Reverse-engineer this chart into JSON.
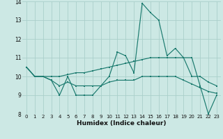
{
  "xlabel": "Humidex (Indice chaleur)",
  "xlim": [
    -0.5,
    23.5
  ],
  "ylim": [
    8,
    14
  ],
  "yticks": [
    8,
    9,
    10,
    11,
    12,
    13,
    14
  ],
  "xticks": [
    0,
    1,
    2,
    3,
    4,
    5,
    6,
    7,
    8,
    9,
    10,
    11,
    12,
    13,
    14,
    15,
    16,
    17,
    18,
    19,
    20,
    21,
    22,
    23
  ],
  "bg_color": "#cce8e4",
  "grid_color": "#aacfca",
  "line_color": "#1a7a6e",
  "series1": [
    10.5,
    10.0,
    10.0,
    9.8,
    9.0,
    10.0,
    9.0,
    9.0,
    9.0,
    9.5,
    10.0,
    11.3,
    11.1,
    10.2,
    13.9,
    13.4,
    13.0,
    11.1,
    11.5,
    11.0,
    11.0,
    9.5,
    8.0,
    9.0
  ],
  "series2": [
    10.5,
    10.0,
    10.0,
    10.0,
    10.0,
    10.1,
    10.2,
    10.2,
    10.3,
    10.4,
    10.5,
    10.6,
    10.7,
    10.8,
    10.9,
    11.0,
    11.0,
    11.0,
    11.0,
    11.0,
    10.0,
    10.0,
    9.7,
    9.5
  ],
  "series3": [
    10.5,
    10.0,
    10.0,
    9.8,
    9.5,
    9.7,
    9.5,
    9.5,
    9.5,
    9.5,
    9.7,
    9.8,
    9.8,
    9.8,
    10.0,
    10.0,
    10.0,
    10.0,
    10.0,
    9.8,
    9.6,
    9.4,
    9.2,
    9.1
  ]
}
